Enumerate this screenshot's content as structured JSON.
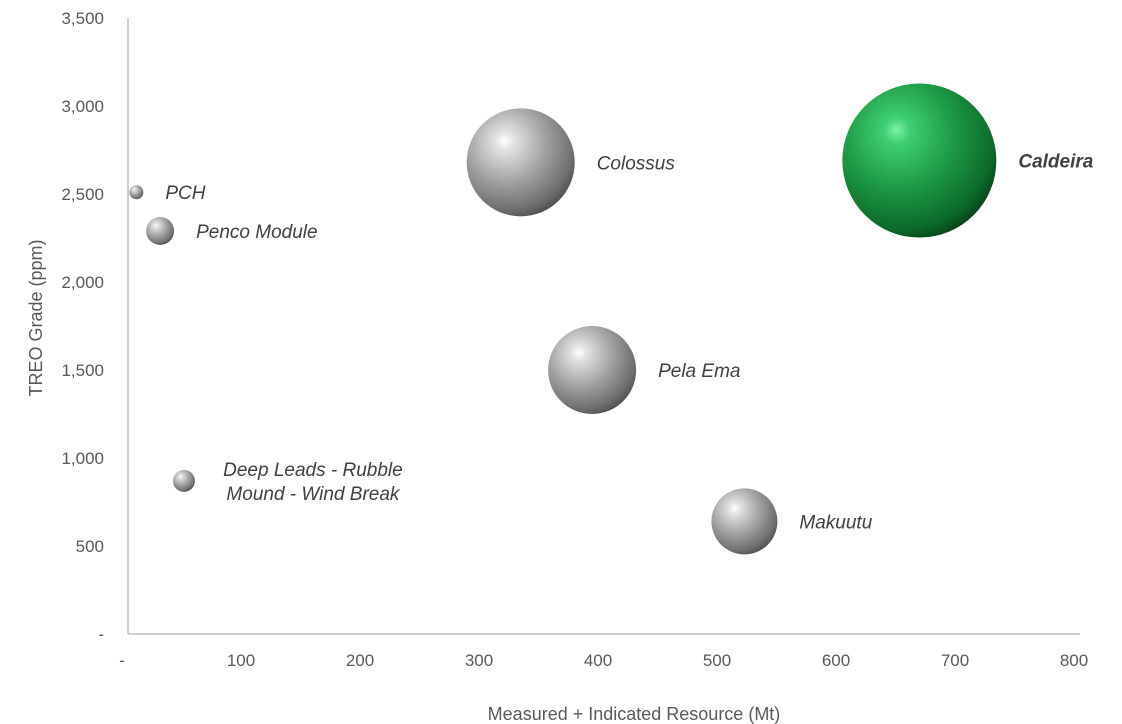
{
  "chart_data": {
    "type": "bubble",
    "xlabel": "Measured + Indicated Resource (Mt)",
    "ylabel": "TREO Grade (ppm)",
    "xlim": [
      0,
      800
    ],
    "ylim": [
      0,
      3500
    ],
    "x_ticks": [
      {
        "value": 0,
        "label": "-"
      },
      {
        "value": 100,
        "label": "100"
      },
      {
        "value": 200,
        "label": "200"
      },
      {
        "value": 300,
        "label": "300"
      },
      {
        "value": 400,
        "label": "400"
      },
      {
        "value": 500,
        "label": "500"
      },
      {
        "value": 600,
        "label": "600"
      },
      {
        "value": 700,
        "label": "700"
      },
      {
        "value": 800,
        "label": "800"
      }
    ],
    "y_ticks": [
      {
        "value": 0,
        "label": "-"
      },
      {
        "value": 500,
        "label": "500"
      },
      {
        "value": 1000,
        "label": "1,000"
      },
      {
        "value": 1500,
        "label": "1,500"
      },
      {
        "value": 2000,
        "label": "2,000"
      },
      {
        "value": 2500,
        "label": "2,500"
      },
      {
        "value": 3000,
        "label": "3,000"
      },
      {
        "value": 3500,
        "label": "3,500"
      }
    ],
    "grid": false,
    "points": [
      {
        "label": [
          "PCH"
        ],
        "x": 7,
        "y": 2510,
        "size": 7,
        "color": "#9a9a9a",
        "highlight": false
      },
      {
        "label": [
          "Penco Module"
        ],
        "x": 27,
        "y": 2290,
        "size": 14,
        "color": "#9a9a9a",
        "highlight": false
      },
      {
        "label": [
          "Deep Leads - Rubble",
          "Mound - Wind Break"
        ],
        "x": 47,
        "y": 870,
        "size": 11,
        "color": "#9a9a9a",
        "highlight": false
      },
      {
        "label": [
          "Colossus"
        ],
        "x": 330,
        "y": 2680,
        "size": 54,
        "color": "#9a9a9a",
        "highlight": false
      },
      {
        "label": [
          "Pela Ema"
        ],
        "x": 390,
        "y": 1500,
        "size": 44,
        "color": "#9a9a9a",
        "highlight": false
      },
      {
        "label": [
          "Makuutu"
        ],
        "x": 518,
        "y": 640,
        "size": 33,
        "color": "#9a9a9a",
        "highlight": false
      },
      {
        "label": [
          "Caldeira"
        ],
        "x": 665,
        "y": 2690,
        "size": 77,
        "color": "#1e9e46",
        "highlight": true
      }
    ]
  }
}
